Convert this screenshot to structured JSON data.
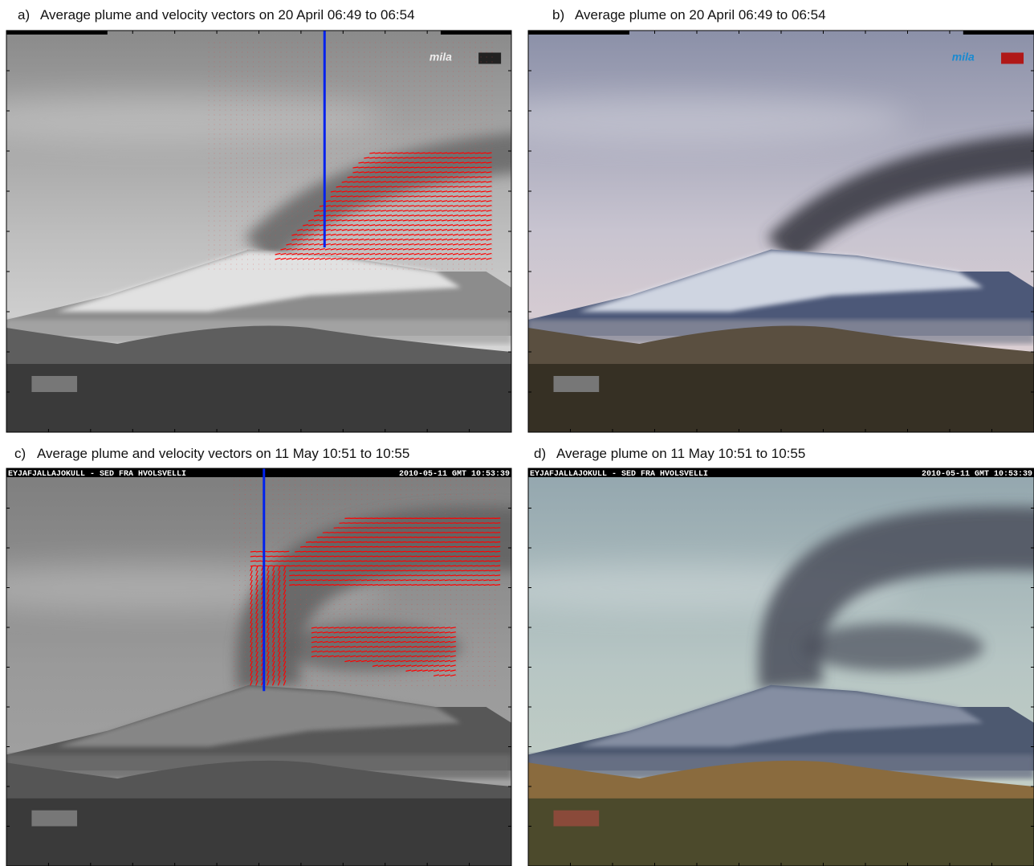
{
  "panels": [
    {
      "label": "a)",
      "title": "Average plume and velocity vectors on 20 April 06:49 to 06:54",
      "logo": "mila"
    },
    {
      "label": "b)",
      "title": "Average plume on 20 April 06:49 to 06:54",
      "logo": "mila"
    },
    {
      "label": "c)",
      "title": "Average plume and velocity vectors on  11 May 10:51 to 10:55",
      "camera_name": "EYJAFJALLAJOKULL - SED FRA HVOLSVELLI",
      "timestamp": "2010-05-11 GMT 10:53:39"
    },
    {
      "label": "d)",
      "title": "Average plume on  11 May 10:51 to 10:55",
      "camera_name": "EYJAFJALLAJOKULL - SED FRA HVOLSVELLI",
      "timestamp": "2010-05-11 GMT 10:53:39"
    }
  ]
}
